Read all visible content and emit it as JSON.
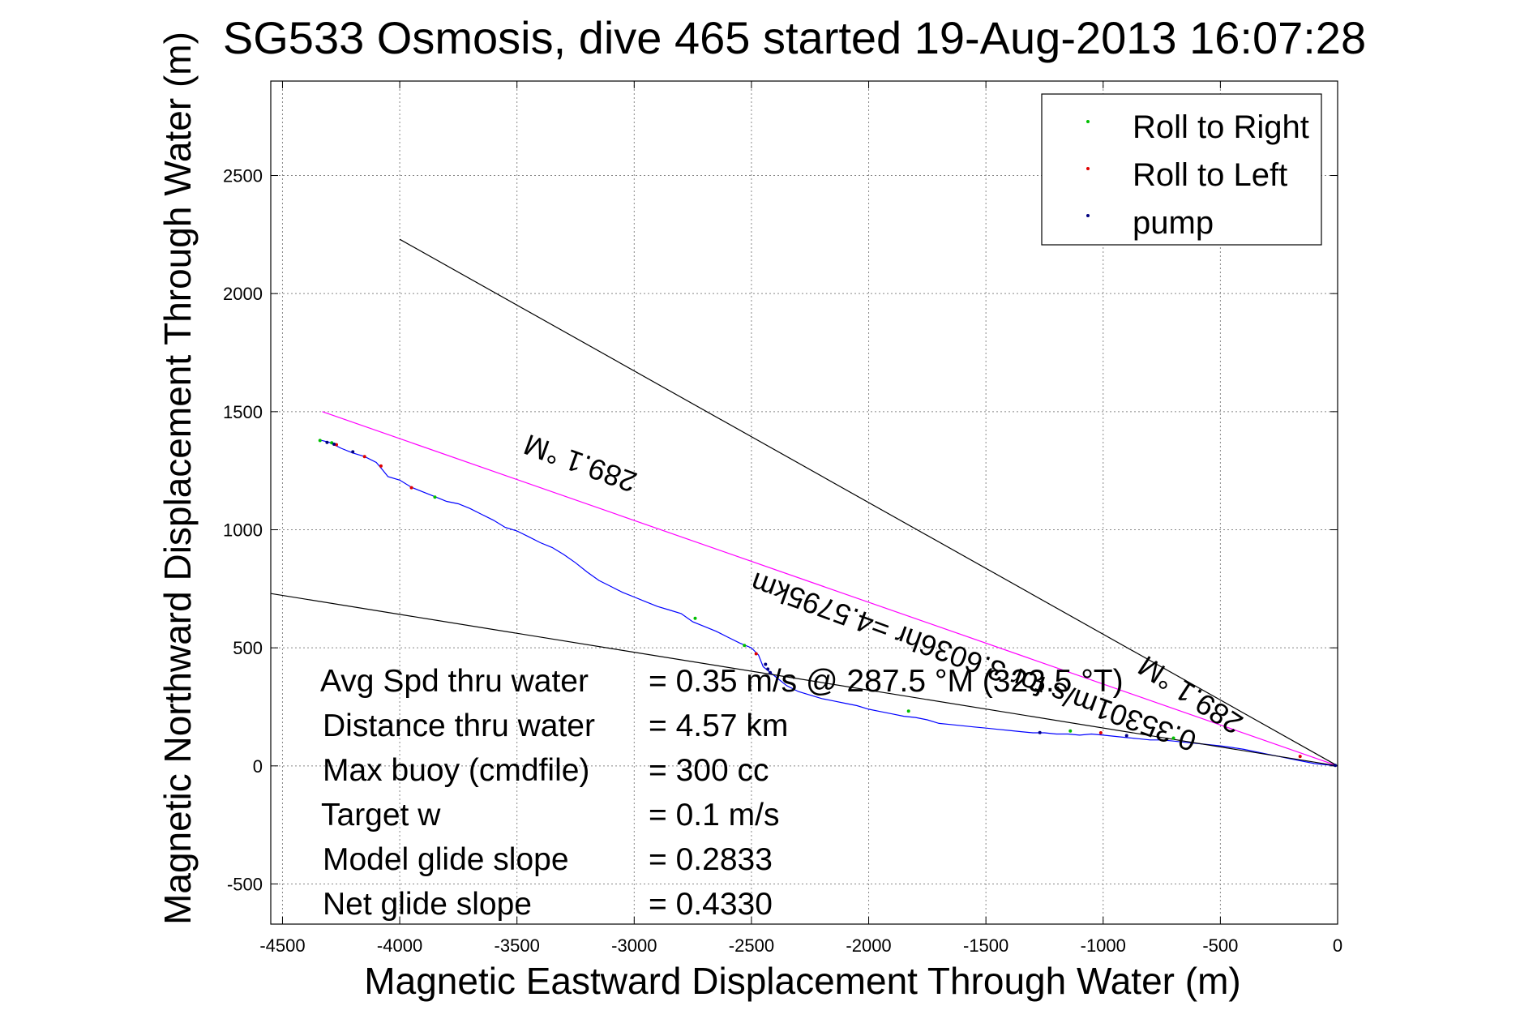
{
  "chart_data": {
    "type": "line",
    "title": "SG533 Osmosis, dive 465 started 19-Aug-2013 16:07:28",
    "xlabel": "Magnetic Eastward Displacement Through Water (m)",
    "ylabel": "Magnetic Northward Displacement Through Water (m)",
    "xlim": [
      -4550,
      0
    ],
    "ylim": [
      -670,
      2900
    ],
    "xticks": [
      -4500,
      -4000,
      -3500,
      -3000,
      -2500,
      -2000,
      -1500,
      -1000,
      -500,
      0
    ],
    "xtick_labels": [
      "-4500",
      "-4000",
      "-3500",
      "-3000",
      "-2500",
      "-2000",
      "-1500",
      "-1000",
      "-500",
      "0"
    ],
    "yticks": [
      -500,
      0,
      500,
      1000,
      1500,
      2000,
      2500
    ],
    "ytick_labels": [
      "-500",
      "0",
      "500",
      "1000",
      "1500",
      "2000",
      "2500"
    ],
    "grid": true,
    "legend_position": "top-right",
    "legend": [
      {
        "label": "Roll to Right",
        "color": "#00c000"
      },
      {
        "label": "Roll to Left",
        "color": "#e00000"
      },
      {
        "label": "pump",
        "color": "#000080"
      }
    ],
    "series": [
      {
        "color": "#0000ff",
        "x": [
          -4340,
          -4300,
          -4250,
          -4200,
          -4150,
          -4100,
          -4070,
          -4050,
          -4000,
          -3950,
          -3900,
          -3850,
          -3800,
          -3750,
          -3700,
          -3650,
          -3600,
          -3550,
          -3500,
          -3450,
          -3400,
          -3350,
          -3300,
          -3250,
          -3200,
          -3150,
          -3100,
          -3050,
          -3000,
          -2950,
          -2900,
          -2850,
          -2800,
          -2750,
          -2700,
          -2650,
          -2600,
          -2550,
          -2500,
          -2470,
          -2450,
          -2400,
          -2350,
          -2300,
          -2250,
          -2200,
          -2150,
          -2100,
          -2050,
          -2000,
          -1950,
          -1900,
          -1850,
          -1800,
          -1750,
          -1700,
          -1650,
          -1600,
          -1550,
          -1500,
          -1450,
          -1400,
          -1350,
          -1300,
          -1250,
          -1200,
          -1150,
          -1100,
          -1050,
          -1000,
          -950,
          -900,
          -850,
          -800,
          -750,
          -700,
          -650,
          -600,
          -550,
          -500,
          -450,
          -400,
          -350,
          -300,
          -250,
          -200,
          -150,
          -100,
          -50,
          0
        ],
        "y": [
          1380,
          1370,
          1345,
          1325,
          1310,
          1285,
          1250,
          1225,
          1210,
          1180,
          1160,
          1140,
          1120,
          1110,
          1090,
          1065,
          1040,
          1010,
          995,
          970,
          945,
          925,
          895,
          860,
          820,
          785,
          760,
          735,
          715,
          695,
          675,
          660,
          645,
          610,
          590,
          570,
          545,
          520,
          500,
          470,
          420,
          380,
          340,
          315,
          300,
          285,
          275,
          265,
          255,
          240,
          230,
          220,
          210,
          205,
          195,
          180,
          175,
          170,
          165,
          160,
          155,
          150,
          145,
          140,
          140,
          135,
          135,
          130,
          135,
          130,
          125,
          120,
          115,
          110,
          110,
          105,
          100,
          95,
          90,
          85,
          78,
          70,
          60,
          50,
          40,
          30,
          20,
          10,
          5,
          0
        ]
      },
      {
        "color": "#ff00ff",
        "x": [
          -4330,
          0
        ],
        "y": [
          1500,
          0
        ]
      },
      {
        "color": "#000000",
        "x": [
          -4000,
          0
        ],
        "y": [
          2230,
          0
        ]
      },
      {
        "color": "#000000",
        "x": [
          -4550,
          0
        ],
        "y": [
          730,
          0
        ]
      }
    ],
    "markers": {
      "roll_right": {
        "x": [
          -4340,
          -4290,
          -3850,
          -2740,
          -2530,
          -1830,
          -1140,
          -700
        ],
        "y": [
          1378,
          1368,
          1138,
          625,
          510,
          232,
          148,
          118
        ]
      },
      "roll_left": {
        "x": [
          -4270,
          -4150,
          -4080,
          -3950,
          -2480,
          -1010,
          -160
        ],
        "y": [
          1360,
          1310,
          1270,
          1178,
          475,
          140,
          40
        ]
      },
      "pump": {
        "x": [
          -4310,
          -4280,
          -4200,
          -2440,
          -2430,
          -2420,
          -1270,
          -900,
          -10
        ],
        "y": [
          1370,
          1362,
          1330,
          430,
          410,
          395,
          141,
          128,
          2
        ]
      }
    },
    "annotations": {
      "labels": [
        "Avg Spd thru water",
        "Distance thru water",
        "Max buoy (cmdfile)",
        "Target w",
        "Model glide slope",
        "Net glide slope"
      ],
      "values": [
        "=  0.35 m/s @ 287.5 °M (323.5 °T)",
        "=  4.57 km",
        "= 300 cc",
        "= 0.1 m/s",
        "= 0.2833",
        "= 0.4330"
      ],
      "rotated": [
        "289.1 °M",
        "0.35301m/s for 3.6036hr =4.5795km",
        "289.1 °M"
      ]
    }
  }
}
